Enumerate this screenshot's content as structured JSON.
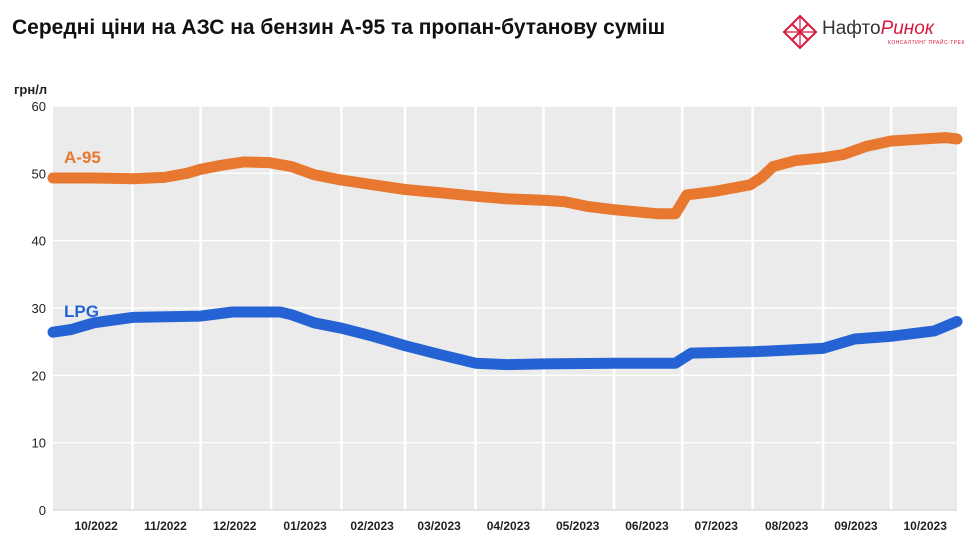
{
  "header": {
    "title": "Середні ціни на АЗС на бензин А-95 та пропан-бутанову суміш"
  },
  "logo": {
    "name_part1": "Нафто",
    "name_part2": "Ринок",
    "tagline": "КОНСАЛТИНГ ПРАЙС-ТРЕК",
    "icon": "network-diamond-icon",
    "color": "#d81b3d"
  },
  "chart_data": {
    "type": "line",
    "ylabel": "грн/л",
    "ylim": [
      0,
      60
    ],
    "yticks": [
      0,
      10,
      20,
      30,
      40,
      50,
      60
    ],
    "grid": true,
    "background": "#ebebeb",
    "xlim": [
      "2022-09-27",
      "2023-10-30"
    ],
    "months": [
      {
        "label": "10/2022",
        "start": "2022-10-01",
        "end": "2022-10-31"
      },
      {
        "label": "11/2022",
        "start": "2022-11-01",
        "end": "2022-11-30"
      },
      {
        "label": "12/2022",
        "start": "2022-12-01",
        "end": "2022-12-31"
      },
      {
        "label": "01/2023",
        "start": "2023-01-01",
        "end": "2023-01-31"
      },
      {
        "label": "02/2023",
        "start": "2023-02-01",
        "end": "2023-02-28"
      },
      {
        "label": "03/2023",
        "start": "2023-03-01",
        "end": "2023-03-31"
      },
      {
        "label": "04/2023",
        "start": "2023-04-01",
        "end": "2023-04-30"
      },
      {
        "label": "05/2023",
        "start": "2023-05-01",
        "end": "2023-05-31"
      },
      {
        "label": "06/2023",
        "start": "2023-06-01",
        "end": "2023-06-30"
      },
      {
        "label": "07/2023",
        "start": "2023-07-01",
        "end": "2023-07-31"
      },
      {
        "label": "08/2023",
        "start": "2023-08-01",
        "end": "2023-08-31"
      },
      {
        "label": "09/2023",
        "start": "2023-09-01",
        "end": "2023-09-30"
      },
      {
        "label": "10/2023",
        "start": "2023-10-01",
        "end": "2023-10-31"
      }
    ],
    "series": [
      {
        "name": "А-95",
        "color": "#e8782f",
        "points": [
          [
            "2022-09-27",
            49.3
          ],
          [
            "2022-10-15",
            49.3
          ],
          [
            "2022-11-01",
            49.2
          ],
          [
            "2022-11-15",
            49.4
          ],
          [
            "2022-11-25",
            50.0
          ],
          [
            "2022-12-01",
            50.6
          ],
          [
            "2022-12-10",
            51.2
          ],
          [
            "2022-12-20",
            51.7
          ],
          [
            "2022-12-31",
            51.6
          ],
          [
            "2023-01-10",
            51.0
          ],
          [
            "2023-01-20",
            49.8
          ],
          [
            "2023-02-01",
            49.0
          ],
          [
            "2023-02-15",
            48.3
          ],
          [
            "2023-03-01",
            47.6
          ],
          [
            "2023-03-20",
            47.0
          ],
          [
            "2023-04-01",
            46.6
          ],
          [
            "2023-04-15",
            46.2
          ],
          [
            "2023-05-01",
            46.0
          ],
          [
            "2023-05-10",
            45.8
          ],
          [
            "2023-05-20",
            45.1
          ],
          [
            "2023-06-01",
            44.6
          ],
          [
            "2023-06-20",
            44.0
          ],
          [
            "2023-06-28",
            44.0
          ],
          [
            "2023-07-03",
            46.8
          ],
          [
            "2023-07-15",
            47.3
          ],
          [
            "2023-07-31",
            48.3
          ],
          [
            "2023-08-05",
            49.4
          ],
          [
            "2023-08-10",
            51.0
          ],
          [
            "2023-08-20",
            51.9
          ],
          [
            "2023-09-01",
            52.3
          ],
          [
            "2023-09-10",
            52.8
          ],
          [
            "2023-09-20",
            54.0
          ],
          [
            "2023-10-01",
            54.8
          ],
          [
            "2023-10-15",
            55.1
          ],
          [
            "2023-10-25",
            55.3
          ],
          [
            "2023-10-30",
            55.1
          ]
        ]
      },
      {
        "name": "LPG",
        "color": "#2563d4",
        "points": [
          [
            "2022-09-27",
            26.4
          ],
          [
            "2022-10-05",
            26.8
          ],
          [
            "2022-10-15",
            27.8
          ],
          [
            "2022-11-01",
            28.6
          ],
          [
            "2022-12-01",
            28.8
          ],
          [
            "2022-12-15",
            29.4
          ],
          [
            "2023-01-05",
            29.4
          ],
          [
            "2023-01-10",
            29.0
          ],
          [
            "2023-01-20",
            27.8
          ],
          [
            "2023-02-01",
            27.0
          ],
          [
            "2023-02-15",
            25.8
          ],
          [
            "2023-03-01",
            24.4
          ],
          [
            "2023-03-15",
            23.2
          ],
          [
            "2023-04-01",
            21.8
          ],
          [
            "2023-04-15",
            21.6
          ],
          [
            "2023-05-01",
            21.7
          ],
          [
            "2023-06-01",
            21.8
          ],
          [
            "2023-06-28",
            21.8
          ],
          [
            "2023-07-05",
            23.3
          ],
          [
            "2023-08-01",
            23.5
          ],
          [
            "2023-09-01",
            24.0
          ],
          [
            "2023-09-15",
            25.4
          ],
          [
            "2023-10-01",
            25.8
          ],
          [
            "2023-10-20",
            26.6
          ],
          [
            "2023-10-30",
            28.0
          ]
        ]
      }
    ]
  }
}
